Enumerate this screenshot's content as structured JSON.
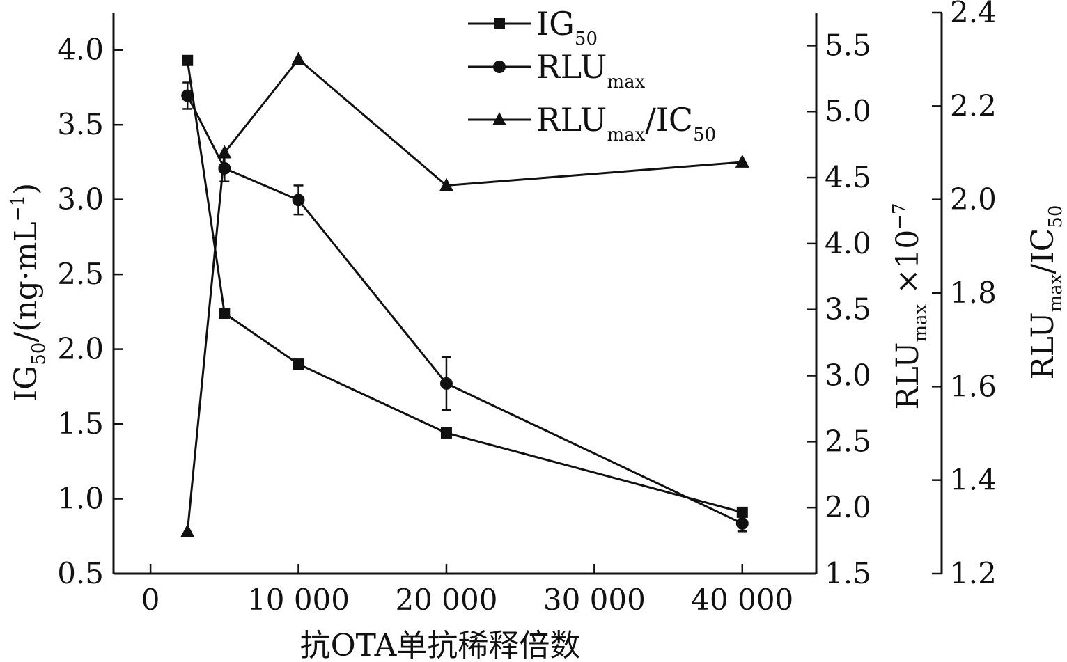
{
  "chart_data": {
    "type": "line",
    "xlabel": "抗OTA单抗稀释倍数",
    "x_ticks": [
      "0",
      "10 000",
      "20 000",
      "30 000",
      "40 000"
    ],
    "x_tick_values": [
      0,
      10000,
      20000,
      30000,
      40000
    ],
    "xlim": [
      -2500,
      45000
    ],
    "axes": {
      "left": {
        "label_main": "IG",
        "label_sub": "50",
        "label_rest": "/(ng·mL",
        "label_sup": "−1",
        "label_close": ")",
        "ylim": [
          0.5,
          4.25
        ],
        "ticks": [
          "0.5",
          "1.0",
          "1.5",
          "2.0",
          "2.5",
          "3.0",
          "3.5",
          "4.0"
        ],
        "tick_values": [
          0.5,
          1.0,
          1.5,
          2.0,
          2.5,
          3.0,
          3.5,
          4.0
        ]
      },
      "right1": {
        "label_main": "RLU",
        "label_sub": "max",
        "label_rest": " ×10",
        "label_sup": "−7",
        "ylim": [
          1.5,
          5.75
        ],
        "ticks": [
          "1.5",
          "2.0",
          "2.5",
          "3.0",
          "3.5",
          "4.0",
          "4.5",
          "5.0",
          "5.5"
        ],
        "tick_values": [
          1.5,
          2.0,
          2.5,
          3.0,
          3.5,
          4.0,
          4.5,
          5.0,
          5.5
        ]
      },
      "right2": {
        "label_main": "RLU",
        "label_sub": "max",
        "label_rest": "/IC",
        "label_sub2": "50",
        "ylim": [
          1.2,
          2.4
        ],
        "ticks": [
          "1.2",
          "1.4",
          "1.6",
          "1.8",
          "2.0",
          "2.2",
          "2.4"
        ],
        "tick_values": [
          1.2,
          1.4,
          1.6,
          1.8,
          2.0,
          2.2,
          2.4
        ]
      }
    },
    "series": [
      {
        "name": "IG",
        "name_sub": "50",
        "marker": "square",
        "axis": "left",
        "x": [
          2500,
          5000,
          10000,
          20000,
          40000
        ],
        "y": [
          3.93,
          2.24,
          1.9,
          1.44,
          0.91
        ],
        "err": [
          0,
          0,
          0,
          0,
          0
        ]
      },
      {
        "name": "RLU",
        "name_sub": "max",
        "marker": "circle",
        "axis": "right1",
        "x": [
          2500,
          5000,
          10000,
          20000,
          40000
        ],
        "y": [
          5.12,
          4.57,
          4.33,
          2.94,
          1.88
        ],
        "err": [
          0.1,
          0.1,
          0.11,
          0.2,
          0.06
        ]
      },
      {
        "name": "RLU",
        "name_sub": "max",
        "name_rest": "/IC",
        "name_sub2": "50",
        "marker": "triangle",
        "axis": "right2",
        "x": [
          2500,
          5000,
          10000,
          20000,
          40000
        ],
        "y": [
          1.29,
          2.1,
          2.3,
          2.03,
          2.08
        ],
        "err": [
          0,
          0,
          0,
          0,
          0
        ]
      }
    ],
    "legend_position": "top"
  }
}
